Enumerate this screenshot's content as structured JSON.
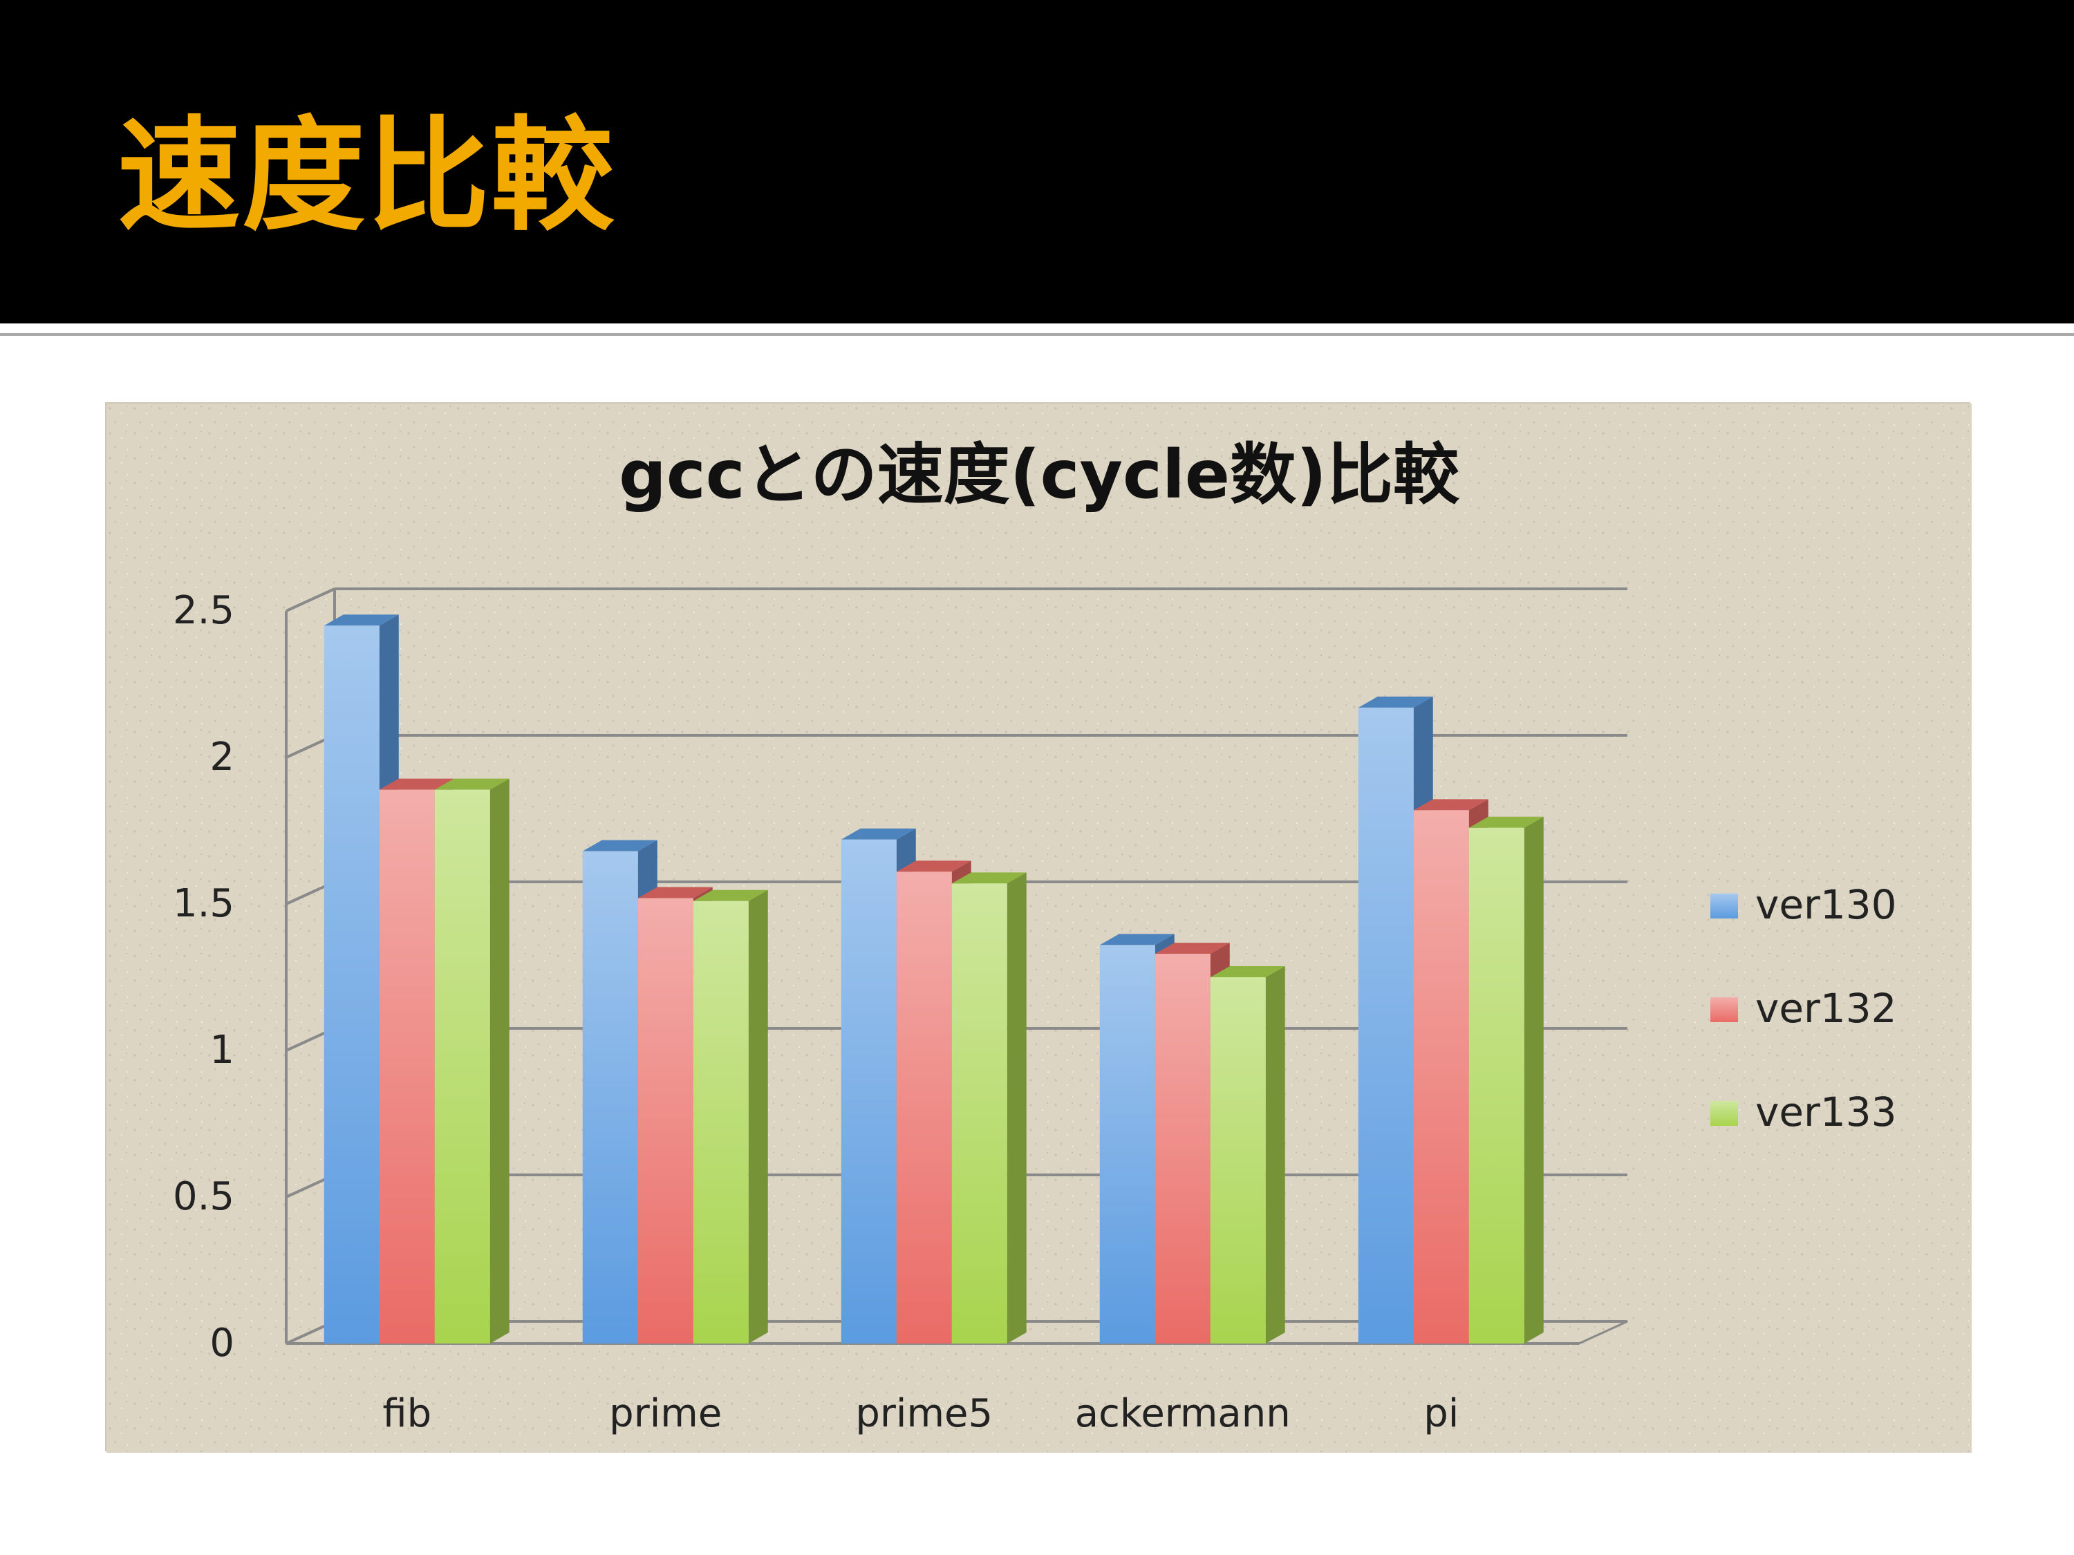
{
  "slide": {
    "title": "速度比較",
    "title_color": "#f2a900",
    "header_bg": "#000000"
  },
  "chart_data": {
    "type": "bar",
    "title": "gccとの速度(cycle数)比較",
    "xlabel": "",
    "ylabel": "",
    "categories": [
      "fib",
      "prime",
      "prime5",
      "ackermann",
      "pi"
    ],
    "series": [
      {
        "name": "ver130",
        "values": [
          2.45,
          1.68,
          1.72,
          1.36,
          2.17
        ],
        "color": "#5b9be0"
      },
      {
        "name": "ver132",
        "values": [
          1.89,
          1.52,
          1.61,
          1.33,
          1.82
        ],
        "color": "#ea6b66"
      },
      {
        "name": "ver133",
        "values": [
          1.89,
          1.51,
          1.57,
          1.25,
          1.76
        ],
        "color": "#a8d44e"
      }
    ],
    "ylim": [
      0,
      2.5
    ],
    "yticks": [
      "0",
      "0.5",
      "1",
      "1.5",
      "2",
      "2.5"
    ],
    "grid": true,
    "legend_position": "right",
    "style": "3d-clustered-column",
    "background": "#ddd5c4"
  }
}
